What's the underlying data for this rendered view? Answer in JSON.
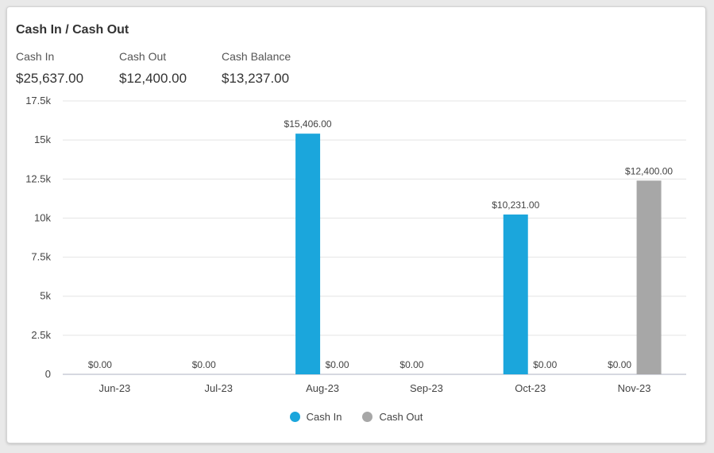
{
  "widget": {
    "title": "Cash In / Cash Out"
  },
  "summary": [
    {
      "label": "Cash In",
      "value": "$25,637.00"
    },
    {
      "label": "Cash Out",
      "value": "$12,400.00"
    },
    {
      "label": "Cash Balance",
      "value": "$13,237.00"
    }
  ],
  "colors": {
    "cash_in": "#1ba6dc",
    "cash_out": "#a7a7a7",
    "grid": "#e4e4e4",
    "axis": "#c9cbd6"
  },
  "chart_data": {
    "type": "bar",
    "categories": [
      "Jun-23",
      "Jul-23",
      "Aug-23",
      "Sep-23",
      "Oct-23",
      "Nov-23"
    ],
    "series": [
      {
        "name": "Cash In",
        "values": [
          0,
          0,
          15406,
          0,
          10231,
          0
        ],
        "labels": [
          "$0.00",
          "$0.00",
          "$15,406.00",
          "$0.00",
          "$10,231.00",
          "$0.00"
        ]
      },
      {
        "name": "Cash Out",
        "values": [
          0,
          0,
          0,
          0,
          0,
          12400
        ],
        "labels": [
          "",
          "",
          "$0.00",
          "",
          "$0.00",
          "$12,400.00"
        ]
      }
    ],
    "ylim": [
      0,
      17500
    ],
    "yticks": [
      0,
      2500,
      5000,
      7500,
      10000,
      12500,
      15000,
      17500
    ],
    "ytick_labels": [
      "0",
      "2.5k",
      "5k",
      "7.5k",
      "10k",
      "12.5k",
      "15k",
      "17.5k"
    ],
    "grid": true,
    "legend": "bottom"
  }
}
